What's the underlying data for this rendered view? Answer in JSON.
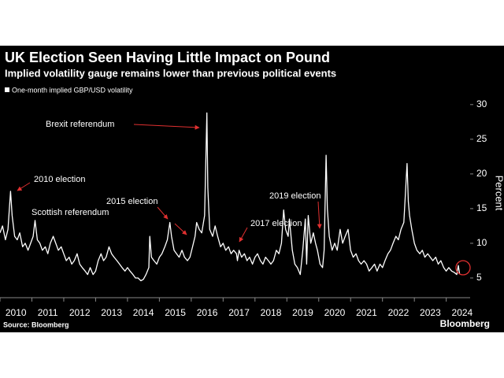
{
  "chart_data": {
    "type": "line",
    "title": "UK Election Seen Having Little Impact on Pound",
    "subtitle": "Implied volatility gauge remains lower than previous political events",
    "y_label": "Percent",
    "source": "Source: Bloomberg",
    "brand": "Bloomberg",
    "annotations": [
      "Brexit referendum",
      "2010 election",
      "Scottish referendum",
      "2015 election",
      "2017 election",
      "2019 election"
    ],
    "xlim": [
      2010,
      2024.75
    ],
    "xticks": [
      2010,
      2011,
      2012,
      2013,
      2014,
      2015,
      2016,
      2017,
      2018,
      2019,
      2020,
      2021,
      2022,
      2023,
      2024
    ],
    "ylim": [
      2.5,
      31
    ],
    "yticks": [
      5,
      10,
      15,
      20,
      25,
      30
    ],
    "grid": false,
    "legend": "top-left",
    "x": [
      2010.0,
      2010.08,
      2010.17,
      2010.25,
      2010.33,
      2010.38,
      2010.46,
      2010.54,
      2010.62,
      2010.71,
      2010.79,
      2010.88,
      2010.96,
      2011.04,
      2011.1,
      2011.17,
      2011.25,
      2011.33,
      2011.42,
      2011.5,
      2011.58,
      2011.67,
      2011.75,
      2011.83,
      2011.92,
      2012.0,
      2012.08,
      2012.17,
      2012.25,
      2012.33,
      2012.42,
      2012.5,
      2012.58,
      2012.67,
      2012.75,
      2012.83,
      2012.92,
      2013.0,
      2013.08,
      2013.17,
      2013.25,
      2013.33,
      2013.42,
      2013.5,
      2013.58,
      2013.67,
      2013.75,
      2013.83,
      2013.92,
      2014.0,
      2014.08,
      2014.17,
      2014.25,
      2014.33,
      2014.42,
      2014.5,
      2014.58,
      2014.67,
      2014.7,
      2014.75,
      2014.83,
      2014.92,
      2015.0,
      2015.08,
      2015.17,
      2015.25,
      2015.33,
      2015.38,
      2015.46,
      2015.54,
      2015.62,
      2015.71,
      2015.79,
      2015.88,
      2015.96,
      2016.04,
      2016.12,
      2016.17,
      2016.25,
      2016.33,
      2016.42,
      2016.49,
      2016.52,
      2016.58,
      2016.67,
      2016.75,
      2016.83,
      2016.92,
      2017.0,
      2017.08,
      2017.17,
      2017.25,
      2017.33,
      2017.42,
      2017.45,
      2017.5,
      2017.58,
      2017.67,
      2017.75,
      2017.83,
      2017.92,
      2018.0,
      2018.08,
      2018.17,
      2018.25,
      2018.33,
      2018.42,
      2018.5,
      2018.58,
      2018.67,
      2018.75,
      2018.83,
      2018.9,
      2018.96,
      2019.04,
      2019.08,
      2019.17,
      2019.25,
      2019.33,
      2019.42,
      2019.5,
      2019.58,
      2019.62,
      2019.67,
      2019.75,
      2019.83,
      2019.9,
      2019.96,
      2020.04,
      2020.12,
      2020.17,
      2020.23,
      2020.27,
      2020.33,
      2020.42,
      2020.5,
      2020.58,
      2020.67,
      2020.75,
      2020.83,
      2020.92,
      2021.0,
      2021.08,
      2021.17,
      2021.25,
      2021.33,
      2021.42,
      2021.5,
      2021.58,
      2021.67,
      2021.75,
      2021.83,
      2021.92,
      2022.0,
      2022.08,
      2022.17,
      2022.25,
      2022.33,
      2022.42,
      2022.5,
      2022.58,
      2022.67,
      2022.77,
      2022.81,
      2022.85,
      2022.92,
      2023.0,
      2023.08,
      2023.17,
      2023.25,
      2023.33,
      2023.42,
      2023.5,
      2023.58,
      2023.67,
      2023.75,
      2023.83,
      2023.92,
      2024.0,
      2024.08,
      2024.17,
      2024.25,
      2024.33,
      2024.38,
      2024.42
    ],
    "series": [
      {
        "name": "One-month implied GBP/USD volatility",
        "color": "#ffffff",
        "values": [
          11.5,
          12.5,
          10.5,
          12,
          17.5,
          14,
          11,
          10.5,
          11.5,
          9.5,
          10,
          9,
          10,
          11,
          13.3,
          10.5,
          10,
          9,
          9.5,
          8.5,
          10,
          11,
          10,
          9,
          9.5,
          8.5,
          7.5,
          8,
          7,
          7.5,
          8.5,
          7,
          6.5,
          6,
          5.5,
          6.5,
          5.5,
          6,
          7.5,
          8.5,
          7.5,
          8,
          9.5,
          8.5,
          8,
          7.5,
          7,
          6.5,
          6,
          6.5,
          6,
          5.5,
          5,
          5,
          4.6,
          4.8,
          5.5,
          6.5,
          11,
          8,
          7.5,
          7,
          8,
          8.5,
          9.5,
          10.5,
          13,
          11,
          9,
          8.5,
          8,
          9,
          8,
          7.5,
          8,
          9.5,
          11,
          13,
          12,
          11.5,
          14,
          28.8,
          18,
          12,
          11,
          12.5,
          11,
          9.5,
          10,
          9,
          9.5,
          8.5,
          9,
          8.5,
          7.5,
          9,
          8,
          8.5,
          7.5,
          8,
          7,
          8,
          8.5,
          7.5,
          7,
          8,
          7.5,
          7,
          7.5,
          9,
          8.5,
          10,
          14.8,
          12,
          11,
          13.5,
          9,
          7,
          6.5,
          5.5,
          9,
          13.5,
          7,
          14,
          10,
          11.5,
          10,
          9,
          7,
          6.5,
          9,
          22.7,
          15,
          11,
          9,
          10,
          9,
          12,
          10,
          11,
          12,
          9,
          8,
          8.5,
          7.5,
          7,
          7.5,
          7,
          6,
          6.5,
          7,
          6,
          7,
          6.5,
          7.5,
          8.5,
          9,
          10,
          11,
          10.5,
          12,
          13,
          21.5,
          16,
          14,
          12,
          10,
          9,
          8.5,
          9,
          8,
          8.5,
          8,
          7.5,
          8,
          7,
          7.5,
          6.5,
          6,
          6.5,
          6,
          5.8,
          5.5,
          6.8,
          5.6
        ]
      }
    ]
  }
}
